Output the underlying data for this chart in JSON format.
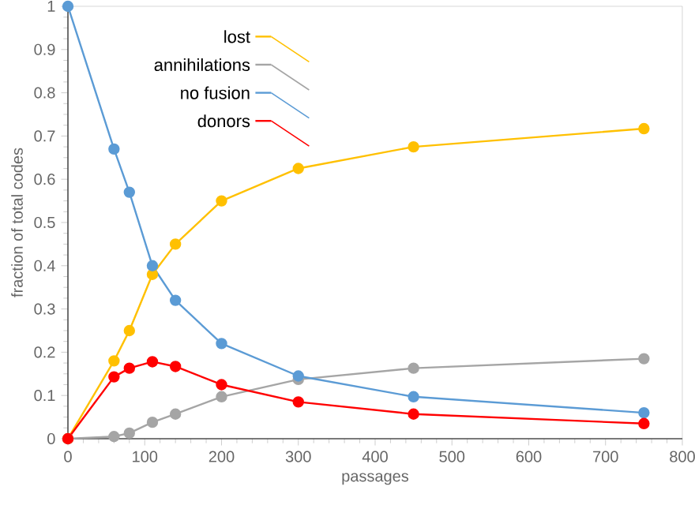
{
  "chart_data": {
    "type": "line",
    "xlabel": "passages",
    "ylabel": "fraction of total codes",
    "x": [
      0,
      60,
      80,
      110,
      140,
      200,
      300,
      450,
      750
    ],
    "series": [
      {
        "name": "lost",
        "color": "#ffc000",
        "values": [
          0,
          0.18,
          0.25,
          0.38,
          0.45,
          0.55,
          0.625,
          0.675,
          0.717
        ]
      },
      {
        "name": "annihilations",
        "color": "#a5a5a5",
        "values": [
          0,
          0.005,
          0.013,
          0.038,
          0.057,
          0.097,
          0.137,
          0.163,
          0.185
        ]
      },
      {
        "name": "no fusion",
        "color": "#5b9bd5",
        "values": [
          1,
          0.67,
          0.57,
          0.4,
          0.32,
          0.22,
          0.145,
          0.097,
          0.06
        ]
      },
      {
        "name": "donors",
        "color": "#ff0000",
        "values": [
          0,
          0.143,
          0.163,
          0.178,
          0.167,
          0.125,
          0.085,
          0.057,
          0.035
        ]
      }
    ],
    "xlim": [
      0,
      800
    ],
    "xticks": [
      0,
      100,
      200,
      300,
      400,
      500,
      600,
      700,
      800
    ],
    "ylim": [
      0,
      1
    ],
    "yticks": [
      0,
      0.1,
      0.2,
      0.3,
      0.4,
      0.5,
      0.6,
      0.7,
      0.8,
      0.9,
      1
    ],
    "marker": "circle",
    "line_style": "solid",
    "grid": false,
    "legend": "top"
  }
}
